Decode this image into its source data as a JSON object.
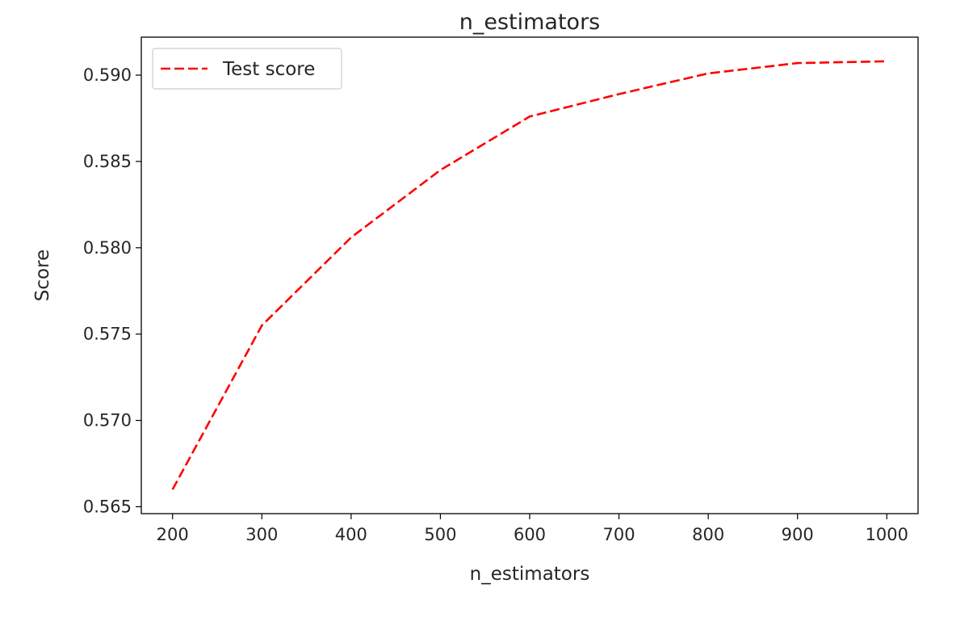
{
  "chart_data": {
    "type": "line",
    "title": "n_estimators",
    "xlabel": "n_estimators",
    "ylabel": "Score",
    "x": [
      200,
      300,
      400,
      500,
      600,
      700,
      800,
      900,
      1000
    ],
    "series": [
      {
        "name": "Test score",
        "color": "#ff0000",
        "line_style": "dashed",
        "values": [
          0.566,
          0.5755,
          0.5806,
          0.5845,
          0.5876,
          0.5889,
          0.5901,
          0.5907,
          0.5908
        ]
      }
    ],
    "xlim": [
      165,
      1035
    ],
    "ylim": [
      0.5646,
      0.5922
    ],
    "xticks": [
      200,
      300,
      400,
      500,
      600,
      700,
      800,
      900,
      1000
    ],
    "xtick_labels": [
      "200",
      "300",
      "400",
      "500",
      "600",
      "700",
      "800",
      "900",
      "1000"
    ],
    "yticks": [
      0.565,
      0.57,
      0.575,
      0.58,
      0.585,
      0.59
    ],
    "ytick_labels": [
      "0.565",
      "0.570",
      "0.575",
      "0.580",
      "0.585",
      "0.590"
    ],
    "grid": false,
    "legend_position": "top-left"
  }
}
